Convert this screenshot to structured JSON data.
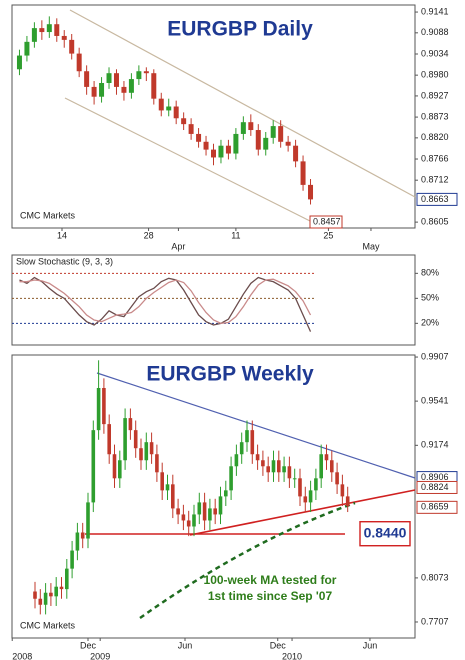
{
  "chart_data": [
    {
      "type": "candlestick",
      "title": "EURGBP Daily",
      "source": "CMC Markets",
      "channel_label": "0.8457",
      "up_color": "#2e9e2e",
      "down_color": "#c0392b",
      "open": [
        0.8995,
        0.903,
        0.9065,
        0.91,
        0.909,
        0.911,
        0.908,
        0.907,
        0.9035,
        0.899,
        0.895,
        0.8925,
        0.896,
        0.8985,
        0.895,
        0.8935,
        0.897,
        0.899,
        0.8985,
        0.892,
        0.889,
        0.89,
        0.887,
        0.8855,
        0.883,
        0.881,
        0.879,
        0.877,
        0.88,
        0.878,
        0.883,
        0.886,
        0.884,
        0.879,
        0.882,
        0.885,
        0.881,
        0.88,
        0.876,
        0.87
      ],
      "high": [
        0.9045,
        0.908,
        0.9115,
        0.912,
        0.913,
        0.9125,
        0.9095,
        0.9085,
        0.905,
        0.9005,
        0.8965,
        0.8975,
        0.9,
        0.8995,
        0.8965,
        0.8985,
        0.9005,
        0.9,
        0.8995,
        0.8935,
        0.892,
        0.8915,
        0.8885,
        0.887,
        0.8845,
        0.8825,
        0.8805,
        0.8815,
        0.8815,
        0.8845,
        0.8875,
        0.888,
        0.8855,
        0.8835,
        0.8865,
        0.8865,
        0.8825,
        0.8815,
        0.8775,
        0.8715
      ],
      "low": [
        0.898,
        0.9015,
        0.905,
        0.907,
        0.9075,
        0.9065,
        0.905,
        0.902,
        0.8975,
        0.893,
        0.8905,
        0.891,
        0.8945,
        0.893,
        0.8915,
        0.892,
        0.8955,
        0.8965,
        0.8905,
        0.8875,
        0.8875,
        0.8855,
        0.884,
        0.8815,
        0.8795,
        0.8775,
        0.875,
        0.8755,
        0.8765,
        0.8765,
        0.8815,
        0.8825,
        0.8775,
        0.8775,
        0.8805,
        0.8795,
        0.8785,
        0.8745,
        0.8685,
        0.865
      ],
      "close": [
        0.903,
        0.9065,
        0.91,
        0.909,
        0.911,
        0.908,
        0.907,
        0.9035,
        0.899,
        0.895,
        0.8925,
        0.896,
        0.8985,
        0.895,
        0.8935,
        0.897,
        0.899,
        0.8985,
        0.892,
        0.889,
        0.89,
        0.887,
        0.8855,
        0.883,
        0.881,
        0.879,
        0.877,
        0.88,
        0.878,
        0.883,
        0.886,
        0.884,
        0.879,
        0.882,
        0.885,
        0.881,
        0.88,
        0.876,
        0.87,
        0.8663
      ],
      "xlim": [
        -1,
        53
      ],
      "xticks": [
        {
          "value": 5.7,
          "label": "14"
        },
        {
          "value": 17.3,
          "label": "28"
        },
        {
          "value": 29,
          "label": "11"
        },
        {
          "value": 41.4,
          "label": "25"
        }
      ],
      "xticks_row2": [
        {
          "value": 21.3,
          "label": "Apr"
        },
        {
          "value": 47.1,
          "label": "May"
        }
      ],
      "ylim": [
        0.859,
        0.9159
      ],
      "yticks": [
        0.9141,
        0.9088,
        0.9034,
        {
          "value": 0.898,
          "label": "0.8980"
        },
        0.8927,
        0.8873,
        {
          "value": 0.882,
          "label": "0.8820"
        },
        0.8766,
        0.8712,
        0.8605
      ],
      "price_labels": [
        {
          "value": 0.8663,
          "label": "0.8663",
          "color": "#1f3a93"
        }
      ]
    },
    {
      "type": "line",
      "title": "Slow Stochastic (9, 3, 3)",
      "series": [
        {
          "color": "#6b4c4c",
          "values": [
            72,
            68,
            75,
            70,
            62,
            55,
            50,
            40,
            30,
            22,
            18,
            25,
            35,
            30,
            28,
            40,
            52,
            58,
            62,
            70,
            74,
            72,
            60,
            45,
            30,
            22,
            18,
            20,
            25,
            40,
            55,
            68,
            75,
            72,
            70,
            65,
            60,
            50,
            30,
            10
          ]
        },
        {
          "color": "#c98a8a",
          "values": [
            70,
            70,
            72,
            71,
            68,
            62,
            56,
            48,
            40,
            30,
            24,
            22,
            26,
            30,
            31,
            33,
            40,
            50,
            57,
            63,
            69,
            72,
            69,
            59,
            45,
            33,
            24,
            20,
            21,
            28,
            40,
            54,
            66,
            72,
            73,
            69,
            65,
            58,
            47,
            30
          ]
        }
      ],
      "xlim": [
        -1,
        53
      ],
      "ylim": [
        -6,
        102
      ],
      "yticks": [
        {
          "value": 80,
          "label": "80%"
        },
        {
          "value": 50,
          "label": "50%"
        },
        {
          "value": 20,
          "label": "20%"
        }
      ],
      "tick_colors": [
        "#c0392b",
        "#8b5a2b",
        "#1f3a93"
      ]
    },
    {
      "type": "candlestick",
      "title": "EURGBP Weekly",
      "source": "CMC Markets",
      "note": [
        "100-week MA tested for",
        "1st time since Sep '07"
      ],
      "up_color": "#2e9e2e",
      "down_color": "#c0392b",
      "open": [
        0.796,
        0.79,
        0.785,
        0.795,
        0.792,
        0.8,
        0.798,
        0.815,
        0.83,
        0.845,
        0.84,
        0.87,
        0.93,
        0.965,
        0.935,
        0.91,
        0.89,
        0.905,
        0.94,
        0.93,
        0.915,
        0.905,
        0.92,
        0.91,
        0.895,
        0.88,
        0.885,
        0.865,
        0.86,
        0.855,
        0.85,
        0.86,
        0.87,
        0.855,
        0.865,
        0.86,
        0.875,
        0.88,
        0.9,
        0.91,
        0.92,
        0.93,
        0.91,
        0.905,
        0.9,
        0.895,
        0.905,
        0.895,
        0.9,
        0.89,
        0.89,
        0.875,
        0.87,
        0.88,
        0.89,
        0.91,
        0.905,
        0.895,
        0.885,
        0.875
      ],
      "high": [
        0.804,
        0.798,
        0.803,
        0.803,
        0.808,
        0.808,
        0.823,
        0.838,
        0.853,
        0.853,
        0.878,
        0.938,
        0.988,
        0.973,
        0.943,
        0.918,
        0.913,
        0.948,
        0.948,
        0.938,
        0.923,
        0.928,
        0.928,
        0.918,
        0.903,
        0.893,
        0.893,
        0.873,
        0.868,
        0.863,
        0.868,
        0.878,
        0.878,
        0.873,
        0.873,
        0.883,
        0.888,
        0.908,
        0.918,
        0.928,
        0.938,
        0.938,
        0.918,
        0.913,
        0.908,
        0.913,
        0.913,
        0.908,
        0.908,
        0.898,
        0.898,
        0.883,
        0.888,
        0.898,
        0.918,
        0.918,
        0.913,
        0.903,
        0.893,
        0.883
      ],
      "low": [
        0.782,
        0.777,
        0.777,
        0.784,
        0.784,
        0.79,
        0.79,
        0.807,
        0.822,
        0.832,
        0.832,
        0.862,
        0.922,
        0.927,
        0.902,
        0.882,
        0.882,
        0.897,
        0.922,
        0.907,
        0.897,
        0.897,
        0.902,
        0.887,
        0.872,
        0.872,
        0.857,
        0.852,
        0.847,
        0.842,
        0.842,
        0.852,
        0.847,
        0.847,
        0.852,
        0.852,
        0.867,
        0.872,
        0.892,
        0.902,
        0.912,
        0.902,
        0.897,
        0.892,
        0.887,
        0.887,
        0.887,
        0.887,
        0.882,
        0.882,
        0.867,
        0.862,
        0.862,
        0.872,
        0.882,
        0.897,
        0.887,
        0.877,
        0.867,
        0.862
      ],
      "close": [
        0.79,
        0.785,
        0.795,
        0.792,
        0.8,
        0.798,
        0.815,
        0.83,
        0.845,
        0.84,
        0.87,
        0.93,
        0.965,
        0.935,
        0.91,
        0.89,
        0.905,
        0.94,
        0.93,
        0.915,
        0.905,
        0.92,
        0.91,
        0.895,
        0.88,
        0.885,
        0.865,
        0.86,
        0.855,
        0.85,
        0.86,
        0.87,
        0.855,
        0.865,
        0.86,
        0.875,
        0.88,
        0.9,
        0.91,
        0.92,
        0.93,
        0.91,
        0.905,
        0.9,
        0.895,
        0.905,
        0.895,
        0.9,
        0.89,
        0.89,
        0.875,
        0.87,
        0.88,
        0.89,
        0.91,
        0.905,
        0.895,
        0.885,
        0.875,
        0.867
      ],
      "xlim": [
        -4.34,
        71.7
      ],
      "xticks": [
        {
          "value": 10,
          "label": "Dec"
        },
        {
          "value": 28.3,
          "label": "Jun"
        },
        {
          "value": 45.8,
          "label": "Dec"
        },
        {
          "value": 63.2,
          "label": "Jun"
        }
      ],
      "xticks_row2": [
        {
          "value": -4.3,
          "label": "2008"
        },
        {
          "value": 12.3,
          "label": "2009"
        },
        {
          "value": 48.5,
          "label": "2010"
        }
      ],
      "ylim": [
        0.7574,
        0.9924
      ],
      "yticks": [
        0.9907,
        0.9541,
        0.9174,
        0.8073,
        0.7707
      ],
      "price_labels": [
        {
          "value": 0.8906,
          "label": "0.8906",
          "color": "#1f3a93"
        },
        {
          "value": 0.8824,
          "label": "0.8824",
          "color": "#c0392b"
        },
        {
          "value": 0.8659,
          "label": "0.8659",
          "color": "#c0392b"
        }
      ],
      "callout": {
        "value": 0.844,
        "label": "0.8440"
      }
    }
  ]
}
